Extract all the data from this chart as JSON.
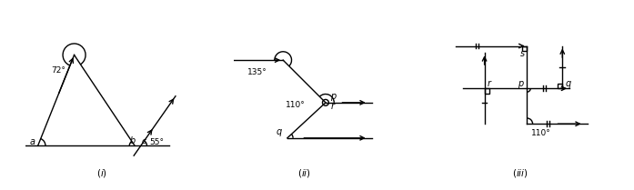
{
  "fig_width": 6.97,
  "fig_height": 2.09,
  "dpi": 100,
  "bg_color": "#ffffff",
  "line_color": "#000000"
}
